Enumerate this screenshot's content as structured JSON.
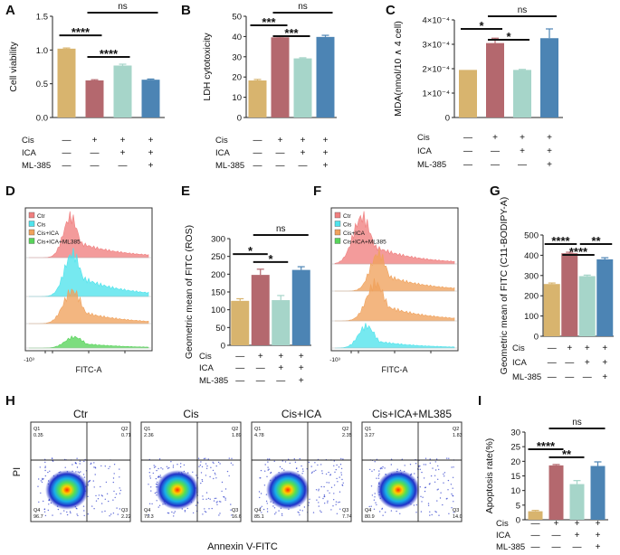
{
  "colors": {
    "tan": "#d8b46e",
    "rose": "#b4686e",
    "mint": "#a6d5c9",
    "blue": "#4c84b4",
    "flow_red": "#f07f7f",
    "flow_cyan": "#4fe3ec",
    "flow_orange": "#f0a25c",
    "flow_green": "#57d45a"
  },
  "conditions": {
    "row_labels": [
      "Cis",
      "ICA",
      "ML-385"
    ],
    "plus": "+",
    "minus": "—",
    "matrix": [
      [
        "—",
        "+",
        "+",
        "+"
      ],
      [
        "—",
        "—",
        "+",
        "+"
      ],
      [
        "—",
        "—",
        "—",
        "+"
      ]
    ]
  },
  "chart_data": [
    {
      "panel": "A",
      "type": "bar",
      "ylabel": "Cell viability",
      "yticks": [
        "0.0",
        "0.5",
        "1.0",
        "1.5"
      ],
      "ylim": [
        0,
        1.5
      ],
      "values": [
        1.02,
        0.55,
        0.77,
        0.56
      ],
      "errors": [
        0.01,
        0.01,
        0.02,
        0.01
      ],
      "brackets": [
        {
          "from": 0,
          "to": 1,
          "label": "****"
        },
        {
          "from": 1,
          "to": 2,
          "label": "****"
        },
        {
          "from": 1,
          "to": 3,
          "label": "ns"
        }
      ]
    },
    {
      "panel": "B",
      "type": "bar",
      "ylabel": "LDH cytotoxicity",
      "yticks": [
        "0",
        "10",
        "20",
        "30",
        "40",
        "50"
      ],
      "ylim": [
        0,
        50
      ],
      "values": [
        18.3,
        39.6,
        29.2,
        39.8
      ],
      "errors": [
        0.5,
        0.3,
        0.3,
        0.8
      ],
      "brackets": [
        {
          "from": 0,
          "to": 1,
          "label": "***"
        },
        {
          "from": 1,
          "to": 2,
          "label": "***"
        },
        {
          "from": 1,
          "to": 3,
          "label": "ns"
        }
      ]
    },
    {
      "panel": "C",
      "type": "bar",
      "ylabel": "MDA(nmol/10 ∧ 4 cell)",
      "yticks": [
        "0",
        "1×10⁻⁴",
        "2×10⁻⁴",
        "3×10⁻⁴",
        "4×10⁻⁴"
      ],
      "ylim": [
        0,
        4
      ],
      "values": [
        1.95,
        3.05,
        1.95,
        3.25
      ],
      "errors": [
        0.0,
        0.2,
        0.02,
        0.38
      ],
      "brackets": [
        {
          "from": 0,
          "to": 1,
          "label": "*"
        },
        {
          "from": 1,
          "to": 2,
          "label": "*"
        },
        {
          "from": 1,
          "to": 3,
          "label": "ns"
        }
      ]
    },
    {
      "panel": "E",
      "type": "bar",
      "ylabel": "Geometric mean of FITC (ROS)",
      "yticks": [
        "0",
        "50",
        "100",
        "150",
        "200",
        "250",
        "300"
      ],
      "ylim": [
        0,
        300
      ],
      "values": [
        125,
        198,
        127,
        212
      ],
      "errors": [
        6,
        16,
        13,
        9
      ],
      "brackets": [
        {
          "from": 0,
          "to": 1,
          "label": "*"
        },
        {
          "from": 1,
          "to": 2,
          "label": "*"
        },
        {
          "from": 1,
          "to": 3,
          "label": "ns"
        }
      ]
    },
    {
      "panel": "G",
      "type": "bar",
      "ylabel": "Geometric mean of FITC (C11-BODIPY-A)",
      "yticks": [
        "0",
        "100",
        "200",
        "300",
        "400",
        "500"
      ],
      "ylim": [
        0,
        500
      ],
      "values": [
        258,
        410,
        297,
        380
      ],
      "errors": [
        5,
        5,
        5,
        8
      ],
      "brackets": [
        {
          "from": 0,
          "to": 1,
          "label": "****"
        },
        {
          "from": 1,
          "to": 2,
          "label": "****"
        },
        {
          "from": 2,
          "to": 3,
          "label": "**"
        }
      ]
    },
    {
      "panel": "I",
      "type": "bar",
      "ylabel": "Apoptosis rate(%)",
      "yticks": [
        "0",
        "5",
        "10",
        "15",
        "20",
        "25",
        "30"
      ],
      "ylim": [
        0,
        30
      ],
      "values": [
        2.9,
        18.6,
        12.2,
        18.4
      ],
      "errors": [
        0.3,
        0.3,
        1.2,
        1.4
      ],
      "brackets": [
        {
          "from": 0,
          "to": 1,
          "label": "****"
        },
        {
          "from": 1,
          "to": 2,
          "label": "**"
        },
        {
          "from": 1,
          "to": 3,
          "label": "ns"
        }
      ]
    }
  ],
  "flow": {
    "D": {
      "legend": [
        "Ctr",
        "Cis",
        "Cis+ICA",
        "Cis+ICA+ML385"
      ],
      "xlabel": "FITC-A",
      "ticks": [
        "-10³",
        "0",
        "10³",
        "10⁴",
        "10⁵"
      ]
    },
    "F": {
      "legend": [
        "Ctr",
        "Cis",
        "Cis+ICA",
        "Cis+ICA+ML385"
      ],
      "xlabel": "FITC-A",
      "ticks": [
        "-10³",
        "0",
        "10³",
        "10⁴",
        "10⁵"
      ]
    }
  },
  "scatter": {
    "ylabel": "PI",
    "xlabel": "Annexin V-FITC",
    "plots": [
      {
        "title": "Ctr",
        "q1": "0.35",
        "q2": "0.71",
        "q3": "2.22",
        "q4": "96.7"
      },
      {
        "title": "Cis",
        "q1": "2.36",
        "q2": "1.89",
        "q3": "16.6",
        "q4": "79.3"
      },
      {
        "title": "Cis+ICA",
        "q1": "4.78",
        "q2": "2.35",
        "q3": "7.74",
        "q4": "85.1"
      },
      {
        "title": "Cis+ICA+ML385",
        "q1": "3.27",
        "q2": "1.83",
        "q3": "14.0",
        "q4": "80.9"
      }
    ]
  },
  "panel_letters": [
    "A",
    "B",
    "C",
    "D",
    "E",
    "F",
    "G",
    "H",
    "I"
  ]
}
